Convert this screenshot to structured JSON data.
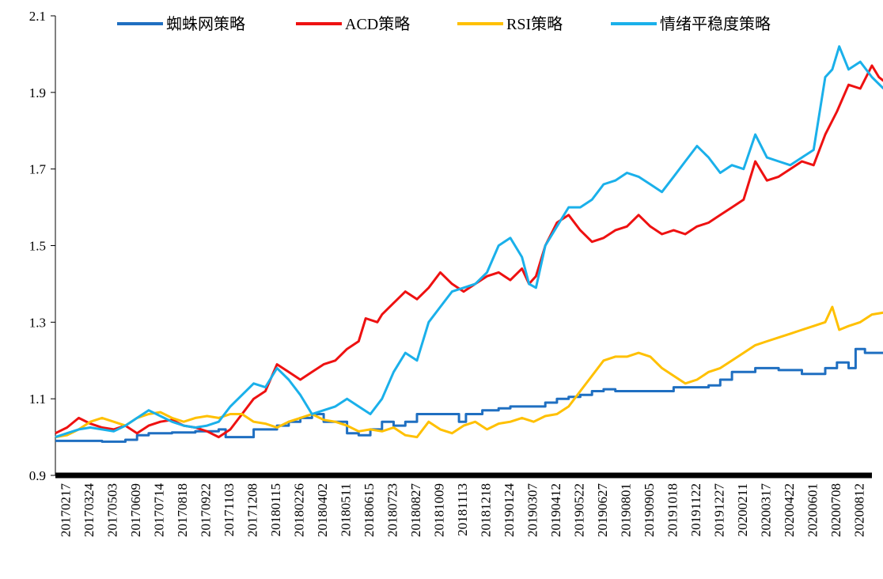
{
  "chart_data": {
    "type": "line",
    "title": "",
    "xlabel": "",
    "ylabel": "",
    "ylim": [
      0.9,
      2.1
    ],
    "y_ticks": [
      0.9,
      1.1,
      1.3,
      1.5,
      1.7,
      1.9,
      2.1
    ],
    "y_tick_labels": [
      "0.9",
      "1.1",
      "1.3",
      "1.5",
      "1.7",
      "1.9",
      "2.1"
    ],
    "grid": false,
    "legend_position": "top",
    "x_tick_labels": [
      "20170217",
      "20170324",
      "20170503",
      "20170609",
      "20170714",
      "20170818",
      "20170922",
      "20171103",
      "20171208",
      "20180115",
      "20180226",
      "20180402",
      "20180511",
      "20180615",
      "20180723",
      "20180827",
      "20181009",
      "20181113",
      "20181218",
      "20190124",
      "20190307",
      "20190412",
      "20190522",
      "20190627",
      "20190801",
      "20190905",
      "20191018",
      "20191122",
      "20191227",
      "20200211",
      "20200317",
      "20200422",
      "20200601",
      "20200708",
      "20200812"
    ],
    "series": [
      {
        "name": "蜘蛛网策略",
        "color": "#1f6fc1",
        "step": true,
        "values": [
          [
            0,
            0.99
          ],
          [
            1,
            0.99
          ],
          [
            1.5,
            0.99
          ],
          [
            2,
            0.988
          ],
          [
            3,
            0.993
          ],
          [
            3.5,
            1.005
          ],
          [
            4,
            1.01
          ],
          [
            5,
            1.012
          ],
          [
            6,
            1.015
          ],
          [
            7,
            1.02
          ],
          [
            7.3,
            1.0
          ],
          [
            8,
            1.0
          ],
          [
            8.5,
            1.02
          ],
          [
            9,
            1.02
          ],
          [
            9.5,
            1.03
          ],
          [
            10,
            1.04
          ],
          [
            10.5,
            1.05
          ],
          [
            11,
            1.06
          ],
          [
            11.5,
            1.04
          ],
          [
            12,
            1.04
          ],
          [
            12.5,
            1.01
          ],
          [
            13,
            1.005
          ],
          [
            13.5,
            1.02
          ],
          [
            14,
            1.04
          ],
          [
            14.5,
            1.03
          ],
          [
            15,
            1.04
          ],
          [
            15.5,
            1.06
          ],
          [
            16,
            1.06
          ],
          [
            17,
            1.06
          ],
          [
            17.3,
            1.04
          ],
          [
            17.6,
            1.06
          ],
          [
            18,
            1.06
          ],
          [
            18.3,
            1.07
          ],
          [
            19,
            1.075
          ],
          [
            19.5,
            1.08
          ],
          [
            20,
            1.08
          ],
          [
            20.5,
            1.08
          ],
          [
            21,
            1.09
          ],
          [
            21.5,
            1.1
          ],
          [
            22,
            1.105
          ],
          [
            22.5,
            1.11
          ],
          [
            23,
            1.12
          ],
          [
            23.5,
            1.125
          ],
          [
            24,
            1.12
          ],
          [
            25,
            1.12
          ],
          [
            26,
            1.12
          ],
          [
            26.5,
            1.13
          ],
          [
            27,
            1.13
          ],
          [
            28,
            1.135
          ],
          [
            28.5,
            1.15
          ],
          [
            29,
            1.17
          ],
          [
            30,
            1.18
          ],
          [
            30.5,
            1.18
          ],
          [
            31,
            1.175
          ],
          [
            32,
            1.165
          ],
          [
            33,
            1.18
          ],
          [
            33.5,
            1.195
          ],
          [
            34,
            1.18
          ],
          [
            34.3,
            1.23
          ],
          [
            34.7,
            1.22
          ],
          [
            35.5,
            1.22
          ]
        ]
      },
      {
        "name": "ACD策略",
        "color": "#ee1111",
        "step": false,
        "values": [
          [
            0,
            1.01
          ],
          [
            0.5,
            1.025
          ],
          [
            1,
            1.05
          ],
          [
            1.5,
            1.035
          ],
          [
            2,
            1.025
          ],
          [
            2.5,
            1.02
          ],
          [
            3,
            1.03
          ],
          [
            3.5,
            1.01
          ],
          [
            4,
            1.03
          ],
          [
            4.5,
            1.04
          ],
          [
            5,
            1.045
          ],
          [
            5.5,
            1.03
          ],
          [
            6,
            1.025
          ],
          [
            6.5,
            1.015
          ],
          [
            7,
            1.0
          ],
          [
            7.5,
            1.02
          ],
          [
            8,
            1.06
          ],
          [
            8.5,
            1.1
          ],
          [
            9,
            1.12
          ],
          [
            9.5,
            1.19
          ],
          [
            10,
            1.17
          ],
          [
            10.5,
            1.15
          ],
          [
            11,
            1.17
          ],
          [
            11.5,
            1.19
          ],
          [
            12,
            1.2
          ],
          [
            12.5,
            1.23
          ],
          [
            13,
            1.25
          ],
          [
            13.3,
            1.31
          ],
          [
            13.8,
            1.3
          ],
          [
            14,
            1.32
          ],
          [
            14.5,
            1.35
          ],
          [
            15,
            1.38
          ],
          [
            15.5,
            1.36
          ],
          [
            16,
            1.39
          ],
          [
            16.5,
            1.43
          ],
          [
            17,
            1.4
          ],
          [
            17.5,
            1.38
          ],
          [
            18,
            1.4
          ],
          [
            18.5,
            1.42
          ],
          [
            19,
            1.43
          ],
          [
            19.5,
            1.41
          ],
          [
            20,
            1.44
          ],
          [
            20.3,
            1.4
          ],
          [
            20.6,
            1.42
          ],
          [
            21,
            1.5
          ],
          [
            21.5,
            1.56
          ],
          [
            22,
            1.58
          ],
          [
            22.5,
            1.54
          ],
          [
            23,
            1.51
          ],
          [
            23.5,
            1.52
          ],
          [
            24,
            1.54
          ],
          [
            24.5,
            1.55
          ],
          [
            25,
            1.58
          ],
          [
            25.5,
            1.55
          ],
          [
            26,
            1.53
          ],
          [
            26.5,
            1.54
          ],
          [
            27,
            1.53
          ],
          [
            27.5,
            1.55
          ],
          [
            28,
            1.56
          ],
          [
            28.5,
            1.58
          ],
          [
            29,
            1.6
          ],
          [
            29.5,
            1.62
          ],
          [
            30,
            1.72
          ],
          [
            30.5,
            1.67
          ],
          [
            31,
            1.68
          ],
          [
            31.5,
            1.7
          ],
          [
            32,
            1.72
          ],
          [
            32.5,
            1.71
          ],
          [
            33,
            1.79
          ],
          [
            33.5,
            1.85
          ],
          [
            34,
            1.92
          ],
          [
            34.5,
            1.91
          ],
          [
            35,
            1.97
          ],
          [
            35.3,
            1.94
          ],
          [
            35.5,
            1.93
          ]
        ]
      },
      {
        "name": "RSI策略",
        "color": "#ffc000",
        "step": false,
        "values": [
          [
            0,
            1.0
          ],
          [
            0.5,
            1.005
          ],
          [
            1,
            1.02
          ],
          [
            1.5,
            1.04
          ],
          [
            2,
            1.05
          ],
          [
            2.5,
            1.04
          ],
          [
            3,
            1.03
          ],
          [
            3.5,
            1.05
          ],
          [
            4,
            1.06
          ],
          [
            4.5,
            1.065
          ],
          [
            5,
            1.05
          ],
          [
            5.5,
            1.04
          ],
          [
            6,
            1.05
          ],
          [
            6.5,
            1.055
          ],
          [
            7,
            1.05
          ],
          [
            7.5,
            1.06
          ],
          [
            8,
            1.06
          ],
          [
            8.5,
            1.04
          ],
          [
            9,
            1.035
          ],
          [
            9.5,
            1.025
          ],
          [
            10,
            1.04
          ],
          [
            10.5,
            1.05
          ],
          [
            11,
            1.06
          ],
          [
            11.5,
            1.045
          ],
          [
            12,
            1.04
          ],
          [
            12.5,
            1.03
          ],
          [
            13,
            1.015
          ],
          [
            13.5,
            1.02
          ],
          [
            14,
            1.015
          ],
          [
            14.5,
            1.025
          ],
          [
            15,
            1.005
          ],
          [
            15.5,
            1.0
          ],
          [
            16,
            1.04
          ],
          [
            16.5,
            1.02
          ],
          [
            17,
            1.01
          ],
          [
            17.5,
            1.03
          ],
          [
            18,
            1.04
          ],
          [
            18.5,
            1.02
          ],
          [
            19,
            1.035
          ],
          [
            19.5,
            1.04
          ],
          [
            20,
            1.05
          ],
          [
            20.5,
            1.04
          ],
          [
            21,
            1.055
          ],
          [
            21.5,
            1.06
          ],
          [
            22,
            1.08
          ],
          [
            22.5,
            1.12
          ],
          [
            23,
            1.16
          ],
          [
            23.5,
            1.2
          ],
          [
            24,
            1.21
          ],
          [
            24.5,
            1.21
          ],
          [
            25,
            1.22
          ],
          [
            25.5,
            1.21
          ],
          [
            26,
            1.18
          ],
          [
            26.5,
            1.16
          ],
          [
            27,
            1.14
          ],
          [
            27.5,
            1.15
          ],
          [
            28,
            1.17
          ],
          [
            28.5,
            1.18
          ],
          [
            29,
            1.2
          ],
          [
            29.5,
            1.22
          ],
          [
            30,
            1.24
          ],
          [
            30.5,
            1.25
          ],
          [
            31,
            1.26
          ],
          [
            31.5,
            1.27
          ],
          [
            32,
            1.28
          ],
          [
            32.5,
            1.29
          ],
          [
            33,
            1.3
          ],
          [
            33.3,
            1.34
          ],
          [
            33.6,
            1.28
          ],
          [
            34,
            1.29
          ],
          [
            34.5,
            1.3
          ],
          [
            35,
            1.32
          ],
          [
            35.5,
            1.325
          ]
        ]
      },
      {
        "name": "情绪平稳度策略",
        "color": "#1ab0ea",
        "step": false,
        "values": [
          [
            0,
            1.0
          ],
          [
            0.5,
            1.01
          ],
          [
            1,
            1.02
          ],
          [
            1.5,
            1.025
          ],
          [
            2,
            1.02
          ],
          [
            2.5,
            1.015
          ],
          [
            3,
            1.03
          ],
          [
            3.5,
            1.05
          ],
          [
            4,
            1.07
          ],
          [
            4.5,
            1.055
          ],
          [
            5,
            1.04
          ],
          [
            5.5,
            1.03
          ],
          [
            6,
            1.025
          ],
          [
            6.5,
            1.03
          ],
          [
            7,
            1.04
          ],
          [
            7.5,
            1.08
          ],
          [
            8,
            1.11
          ],
          [
            8.5,
            1.14
          ],
          [
            9,
            1.13
          ],
          [
            9.5,
            1.18
          ],
          [
            10,
            1.15
          ],
          [
            10.5,
            1.11
          ],
          [
            11,
            1.06
          ],
          [
            11.5,
            1.07
          ],
          [
            12,
            1.08
          ],
          [
            12.5,
            1.1
          ],
          [
            13,
            1.08
          ],
          [
            13.5,
            1.06
          ],
          [
            14,
            1.1
          ],
          [
            14.5,
            1.17
          ],
          [
            15,
            1.22
          ],
          [
            15.5,
            1.2
          ],
          [
            16,
            1.3
          ],
          [
            16.5,
            1.34
          ],
          [
            17,
            1.38
          ],
          [
            17.5,
            1.39
          ],
          [
            18,
            1.4
          ],
          [
            18.5,
            1.43
          ],
          [
            19,
            1.5
          ],
          [
            19.5,
            1.52
          ],
          [
            20,
            1.47
          ],
          [
            20.3,
            1.4
          ],
          [
            20.6,
            1.39
          ],
          [
            21,
            1.5
          ],
          [
            21.5,
            1.55
          ],
          [
            22,
            1.6
          ],
          [
            22.5,
            1.6
          ],
          [
            23,
            1.62
          ],
          [
            23.5,
            1.66
          ],
          [
            24,
            1.67
          ],
          [
            24.5,
            1.69
          ],
          [
            25,
            1.68
          ],
          [
            25.5,
            1.66
          ],
          [
            26,
            1.64
          ],
          [
            26.5,
            1.68
          ],
          [
            27,
            1.72
          ],
          [
            27.5,
            1.76
          ],
          [
            28,
            1.73
          ],
          [
            28.5,
            1.69
          ],
          [
            29,
            1.71
          ],
          [
            29.5,
            1.7
          ],
          [
            30,
            1.79
          ],
          [
            30.5,
            1.73
          ],
          [
            31,
            1.72
          ],
          [
            31.5,
            1.71
          ],
          [
            32,
            1.73
          ],
          [
            32.5,
            1.75
          ],
          [
            33,
            1.94
          ],
          [
            33.3,
            1.96
          ],
          [
            33.6,
            2.02
          ],
          [
            34,
            1.96
          ],
          [
            34.5,
            1.98
          ],
          [
            35,
            1.94
          ],
          [
            35.5,
            1.91
          ]
        ]
      }
    ]
  }
}
